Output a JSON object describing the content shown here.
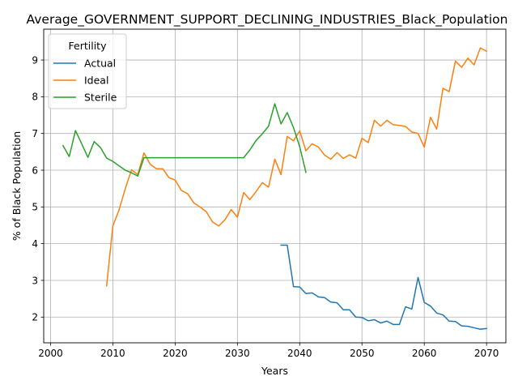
{
  "chart_data": {
    "type": "line",
    "title": "Average_GOVERNMENT_SUPPORT_DECLINING_INDUSTRIES_Black_Population",
    "xlabel": "Years",
    "ylabel": "% of Black Population",
    "xlim": [
      1998.9,
      2073.1
    ],
    "ylim": [
      1.3,
      9.84
    ],
    "xticks": [
      2000,
      2010,
      2020,
      2030,
      2040,
      2050,
      2060,
      2070
    ],
    "yticks": [
      2,
      3,
      4,
      5,
      6,
      7,
      8,
      9
    ],
    "grid": true,
    "legend": {
      "title": "Fertility",
      "placement": "upper left"
    },
    "series": [
      {
        "name": "Actual",
        "color": "#1f77b4",
        "points": [
          [
            2037,
            3.96
          ],
          [
            2038,
            3.96
          ],
          [
            2039,
            2.83
          ],
          [
            2040,
            2.82
          ],
          [
            2041,
            2.64
          ],
          [
            2042,
            2.66
          ],
          [
            2043,
            2.55
          ],
          [
            2044,
            2.53
          ],
          [
            2045,
            2.41
          ],
          [
            2046,
            2.39
          ],
          [
            2047,
            2.2
          ],
          [
            2048,
            2.2
          ],
          [
            2049,
            2.0
          ],
          [
            2050,
            1.99
          ],
          [
            2051,
            1.9
          ],
          [
            2052,
            1.93
          ],
          [
            2053,
            1.84
          ],
          [
            2054,
            1.89
          ],
          [
            2055,
            1.8
          ],
          [
            2056,
            1.8
          ],
          [
            2057,
            2.28
          ],
          [
            2058,
            2.22
          ],
          [
            2059,
            3.08
          ],
          [
            2060,
            2.4
          ],
          [
            2061,
            2.3
          ],
          [
            2062,
            2.11
          ],
          [
            2063,
            2.06
          ],
          [
            2064,
            1.89
          ],
          [
            2065,
            1.88
          ],
          [
            2066,
            1.76
          ],
          [
            2067,
            1.75
          ],
          [
            2068,
            1.71
          ],
          [
            2069,
            1.67
          ],
          [
            2070,
            1.69
          ]
        ]
      },
      {
        "name": "Ideal",
        "color": "#ff7f0e",
        "points": [
          [
            2009,
            2.85
          ],
          [
            2010,
            4.48
          ],
          [
            2011,
            4.92
          ],
          [
            2012,
            5.5
          ],
          [
            2013,
            6.01
          ],
          [
            2014,
            5.88
          ],
          [
            2015,
            6.47
          ],
          [
            2016,
            6.16
          ],
          [
            2017,
            6.04
          ],
          [
            2018,
            6.04
          ],
          [
            2019,
            5.8
          ],
          [
            2020,
            5.73
          ],
          [
            2021,
            5.45
          ],
          [
            2022,
            5.36
          ],
          [
            2023,
            5.11
          ],
          [
            2024,
            5.0
          ],
          [
            2025,
            4.87
          ],
          [
            2026,
            4.59
          ],
          [
            2027,
            4.48
          ],
          [
            2028,
            4.65
          ],
          [
            2029,
            4.93
          ],
          [
            2030,
            4.72
          ],
          [
            2031,
            5.39
          ],
          [
            2032,
            5.2
          ],
          [
            2033,
            5.42
          ],
          [
            2034,
            5.66
          ],
          [
            2035,
            5.54
          ],
          [
            2036,
            6.3
          ],
          [
            2037,
            5.88
          ],
          [
            2038,
            6.92
          ],
          [
            2039,
            6.8
          ],
          [
            2040,
            7.07
          ],
          [
            2041,
            6.53
          ],
          [
            2042,
            6.72
          ],
          [
            2043,
            6.63
          ],
          [
            2044,
            6.41
          ],
          [
            2045,
            6.3
          ],
          [
            2046,
            6.48
          ],
          [
            2047,
            6.32
          ],
          [
            2048,
            6.42
          ],
          [
            2049,
            6.33
          ],
          [
            2050,
            6.87
          ],
          [
            2051,
            6.75
          ],
          [
            2052,
            7.36
          ],
          [
            2053,
            7.2
          ],
          [
            2054,
            7.36
          ],
          [
            2055,
            7.24
          ],
          [
            2056,
            7.22
          ],
          [
            2057,
            7.19
          ],
          [
            2058,
            7.04
          ],
          [
            2059,
            7.0
          ],
          [
            2060,
            6.63
          ],
          [
            2061,
            7.44
          ],
          [
            2062,
            7.12
          ],
          [
            2063,
            8.23
          ],
          [
            2064,
            8.14
          ],
          [
            2065,
            8.97
          ],
          [
            2066,
            8.8
          ],
          [
            2067,
            9.05
          ],
          [
            2068,
            8.87
          ],
          [
            2069,
            9.33
          ],
          [
            2070,
            9.24
          ]
        ]
      },
      {
        "name": "Sterile",
        "color": "#2ca02c",
        "points": [
          [
            2002,
            6.67
          ],
          [
            2003,
            6.37
          ],
          [
            2004,
            7.08
          ],
          [
            2005,
            6.72
          ],
          [
            2006,
            6.35
          ],
          [
            2007,
            6.78
          ],
          [
            2008,
            6.62
          ],
          [
            2009,
            6.33
          ],
          [
            2010,
            6.24
          ],
          [
            2011,
            6.12
          ],
          [
            2012,
            6.0
          ],
          [
            2013,
            5.93
          ],
          [
            2014,
            5.84
          ],
          [
            2015,
            6.34
          ],
          [
            2016,
            6.34
          ],
          [
            2017,
            6.34
          ],
          [
            2018,
            6.34
          ],
          [
            2019,
            6.34
          ],
          [
            2020,
            6.34
          ],
          [
            2021,
            6.34
          ],
          [
            2022,
            6.34
          ],
          [
            2023,
            6.34
          ],
          [
            2024,
            6.34
          ],
          [
            2025,
            6.34
          ],
          [
            2026,
            6.34
          ],
          [
            2027,
            6.34
          ],
          [
            2028,
            6.34
          ],
          [
            2029,
            6.34
          ],
          [
            2030,
            6.34
          ],
          [
            2031,
            6.34
          ],
          [
            2032,
            6.55
          ],
          [
            2033,
            6.81
          ],
          [
            2034,
            6.99
          ],
          [
            2035,
            7.2
          ],
          [
            2036,
            7.81
          ],
          [
            2037,
            7.26
          ],
          [
            2038,
            7.57
          ],
          [
            2039,
            7.16
          ],
          [
            2040,
            6.64
          ],
          [
            2041,
            5.94
          ]
        ]
      }
    ]
  }
}
